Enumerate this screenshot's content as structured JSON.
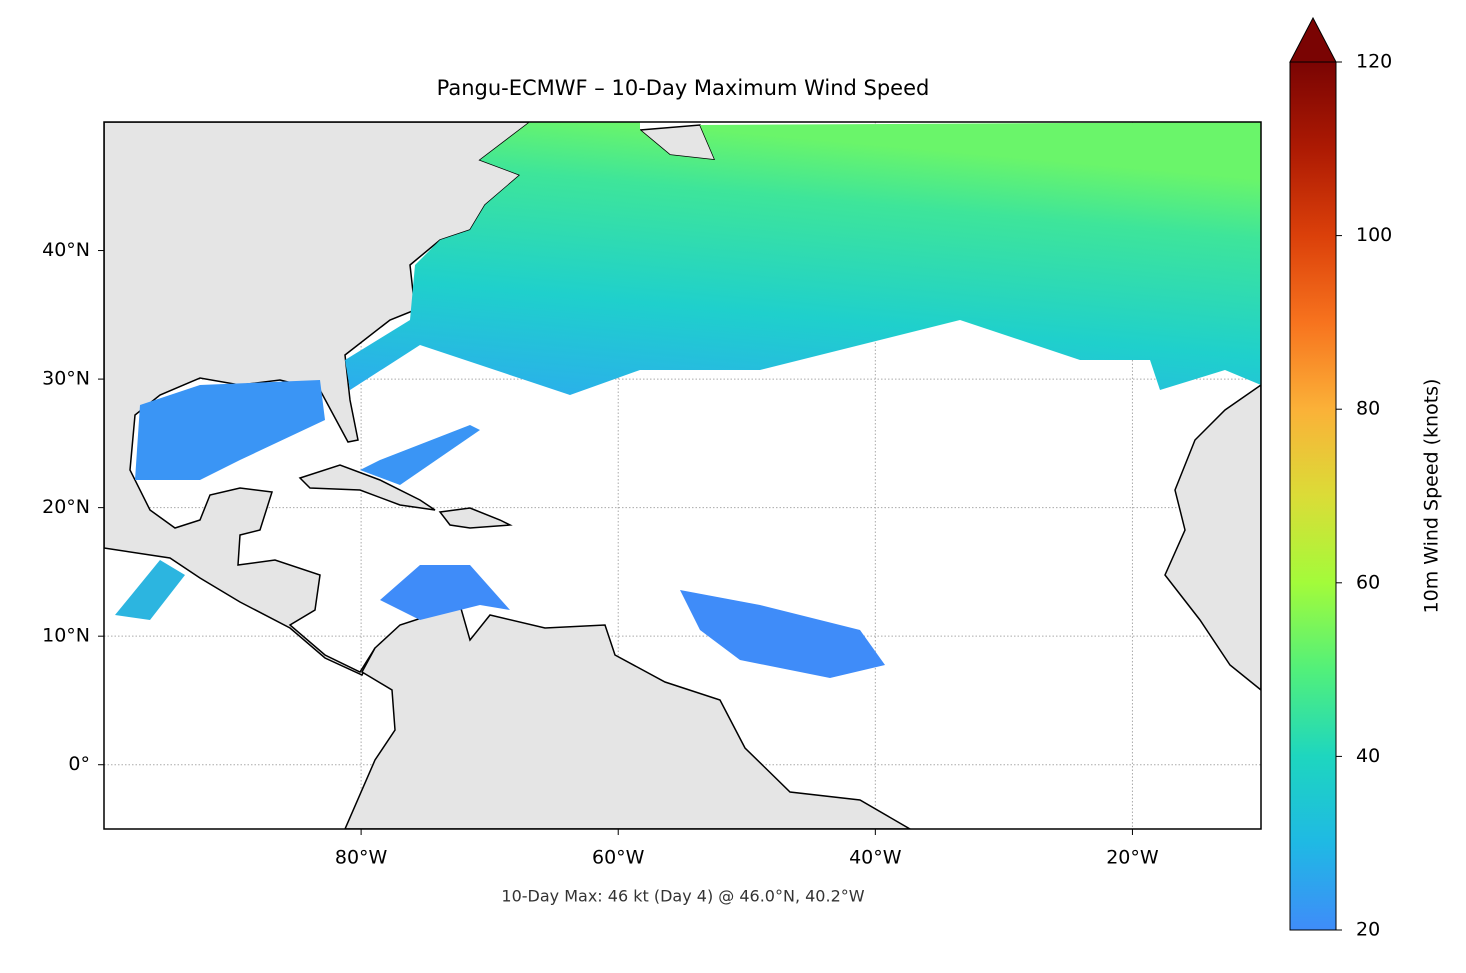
{
  "chart_data": {
    "type": "map",
    "title": "Pangu-ECMWF – 10-Day Maximum Wind Speed",
    "footnote": "10-Day Max: 46 kt (Day 4) @ 46.0°N, 40.2°W",
    "xlim": [
      -100,
      -10
    ],
    "ylim": [
      -5,
      50
    ],
    "xticks": [
      {
        "value": -80,
        "label": "80°W"
      },
      {
        "value": -60,
        "label": "60°W"
      },
      {
        "value": -40,
        "label": "40°W"
      },
      {
        "value": -20,
        "label": "20°W"
      }
    ],
    "yticks": [
      {
        "value": 0,
        "label": "0°"
      },
      {
        "value": 10,
        "label": "10°N"
      },
      {
        "value": 20,
        "label": "20°N"
      },
      {
        "value": 30,
        "label": "30°N"
      },
      {
        "value": 40,
        "label": "40°N"
      }
    ],
    "grid": true,
    "colorbar": {
      "label": "10m Wind Speed (knots)",
      "lim": [
        20,
        120
      ],
      "ticks": [
        20,
        40,
        60,
        80,
        100,
        120
      ]
    }
  }
}
